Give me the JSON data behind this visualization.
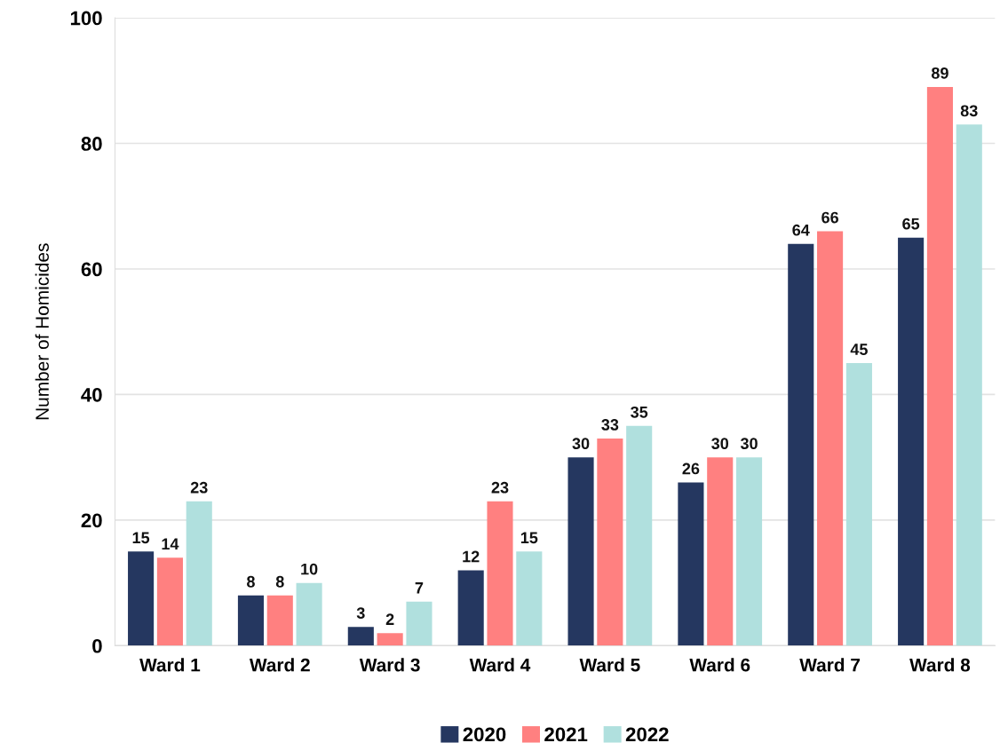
{
  "chart_data": {
    "type": "bar",
    "ylabel": "Number of Homicides",
    "categories": [
      "Ward 1",
      "Ward 2",
      "Ward 3",
      "Ward 4",
      "Ward 5",
      "Ward 6",
      "Ward 7",
      "Ward 8"
    ],
    "series": [
      {
        "name": "2020",
        "color": "#253760",
        "values": [
          15,
          8,
          3,
          12,
          30,
          26,
          64,
          65
        ]
      },
      {
        "name": "2021",
        "color": "#ff8080",
        "values": [
          14,
          8,
          2,
          23,
          33,
          30,
          66,
          89
        ]
      },
      {
        "name": "2022",
        "color": "#b0e0de",
        "values": [
          23,
          10,
          7,
          15,
          35,
          30,
          45,
          83
        ]
      }
    ],
    "ylim": [
      0,
      100
    ],
    "yticks": [
      0,
      20,
      40,
      60,
      80,
      100
    ],
    "grid": "y",
    "legend": "bottom",
    "data_labels": true
  }
}
